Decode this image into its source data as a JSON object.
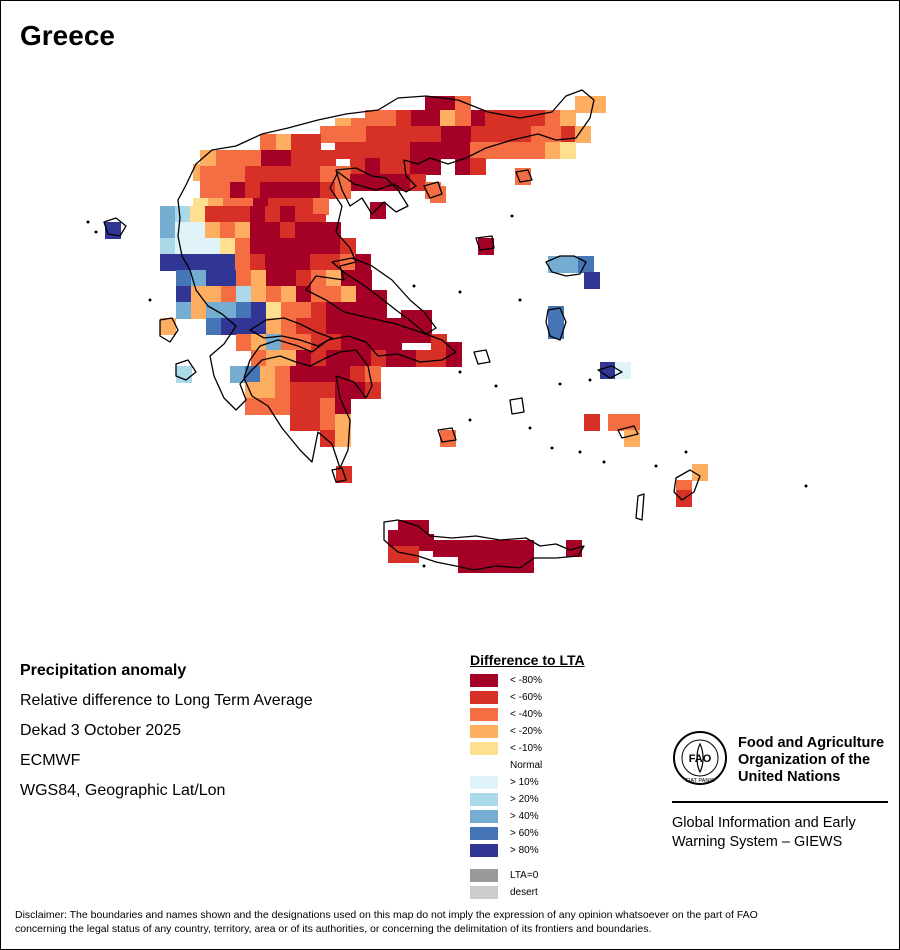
{
  "title": "Greece",
  "info": {
    "heading": "Precipitation anomaly",
    "subtitle": "Relative difference to Long Term Average",
    "period": "Dekad 3 October 2025",
    "source": "ECMWF",
    "projection": "WGS84, Geographic Lat/Lon"
  },
  "legend": {
    "title": "Difference to LTA",
    "items": [
      {
        "label": "< -80%",
        "color": "#a50026"
      },
      {
        "label": "< -60%",
        "color": "#d73027"
      },
      {
        "label": "< -40%",
        "color": "#f46d43"
      },
      {
        "label": "< -20%",
        "color": "#fdae61"
      },
      {
        "label": "< -10%",
        "color": "#fee090"
      },
      {
        "label": "Normal",
        "color": null
      },
      {
        "label": "> 10%",
        "color": "#e0f3f8"
      },
      {
        "label": "> 20%",
        "color": "#abd9e9"
      },
      {
        "label": "> 40%",
        "color": "#74add1"
      },
      {
        "label": "> 60%",
        "color": "#4575b4"
      },
      {
        "label": "> 80%",
        "color": "#313695"
      }
    ],
    "extra": [
      {
        "label": "LTA=0",
        "color": "#999999"
      },
      {
        "label": "desert",
        "color": "#cccccc"
      }
    ]
  },
  "organization": {
    "name_line1": "Food and Agriculture",
    "name_line2": "Organization of the",
    "name_line3": "United Nations",
    "logo_text": "FAO",
    "logo_motto": "FIAT PANIS",
    "system_line1": "Global Information and Early",
    "system_line2": "Warning System – GIEWS"
  },
  "disclaimer_line1": "Disclaimer: The boundaries and names shown and the designations used on this map do not imply the expression of any opinion whatsoever on the part of FAO",
  "disclaimer_line2": "concerning the legal status of any country, territory, area or of its authorities, or concerning the delimitation of its frontiers and boundaries."
}
